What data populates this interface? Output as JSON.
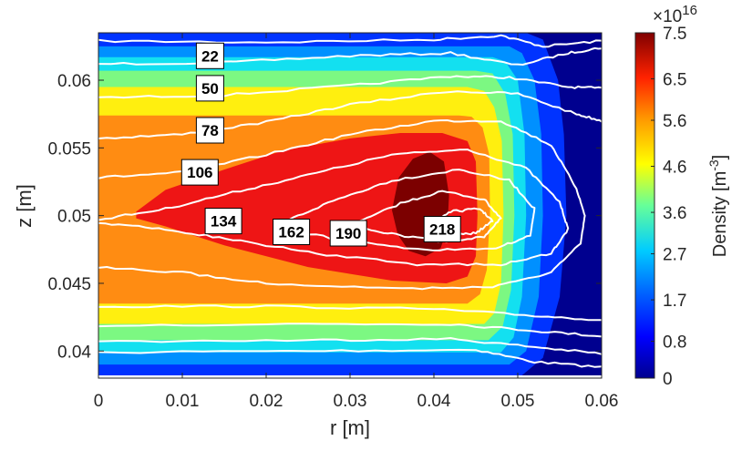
{
  "chart_data": {
    "type": "heatmap",
    "title": "",
    "xlabel": "r [m]",
    "ylabel": "z [m]",
    "xlim": [
      0,
      0.06
    ],
    "ylim": [
      0.038,
      0.0635
    ],
    "x_ticks": [
      {
        "value": 0,
        "label": "0"
      },
      {
        "value": 0.01,
        "label": "0.01"
      },
      {
        "value": 0.02,
        "label": "0.02"
      },
      {
        "value": 0.03,
        "label": "0.03"
      },
      {
        "value": 0.04,
        "label": "0.04"
      },
      {
        "value": 0.05,
        "label": "0.05"
      },
      {
        "value": 0.06,
        "label": "0.06"
      }
    ],
    "y_ticks": [
      {
        "value": 0.04,
        "label": "0.04"
      },
      {
        "value": 0.045,
        "label": "0.045"
      },
      {
        "value": 0.05,
        "label": "0.05"
      },
      {
        "value": 0.055,
        "label": "0.055"
      },
      {
        "value": 0.06,
        "label": "0.06"
      }
    ],
    "colorbar": {
      "label": "Density [m",
      "label_superscript": "-3",
      "label_suffix": "]",
      "multiplier_base": "×10",
      "multiplier_exponent": "16",
      "range": [
        0,
        7.5
      ],
      "tick_labels": [
        "0",
        "0.8",
        "1.7",
        "2.7",
        "3.6",
        "4.6",
        "5.6",
        "6.5",
        "7.5"
      ],
      "tick_values": [
        0,
        0.8,
        1.7,
        2.7,
        3.6,
        4.6,
        5.6,
        6.5,
        7.5
      ]
    },
    "filled_levels": [
      {
        "value": 0.4,
        "color": "#00008f"
      },
      {
        "value": 1.2,
        "color": "#0033ff"
      },
      {
        "value": 2.2,
        "color": "#0090ff"
      },
      {
        "value": 3.1,
        "color": "#13e0f0"
      },
      {
        "value": 4.1,
        "color": "#7cf882"
      },
      {
        "value": 5.0,
        "color": "#ffef0f"
      },
      {
        "value": 6.0,
        "color": "#ff8c12"
      },
      {
        "value": 6.9,
        "color": "#ee1515"
      },
      {
        "value": 7.4,
        "color": "#7c0000"
      }
    ],
    "contour_lines": {
      "color": "#ffffff",
      "levels": [
        "22",
        "50",
        "78",
        "106",
        "134",
        "162",
        "190",
        "218"
      ],
      "label_positions": [
        {
          "label": "22",
          "r": 0.0133,
          "z": 0.0618
        },
        {
          "label": "50",
          "r": 0.0133,
          "z": 0.0594
        },
        {
          "label": "78",
          "r": 0.0133,
          "z": 0.0563
        },
        {
          "label": "106",
          "r": 0.0121,
          "z": 0.0532
        },
        {
          "label": "134",
          "r": 0.0149,
          "z": 0.0496
        },
        {
          "label": "162",
          "r": 0.023,
          "z": 0.0488
        },
        {
          "label": "190",
          "r": 0.0298,
          "z": 0.0487
        },
        {
          "label": "218",
          "r": 0.041,
          "z": 0.049
        }
      ]
    }
  }
}
